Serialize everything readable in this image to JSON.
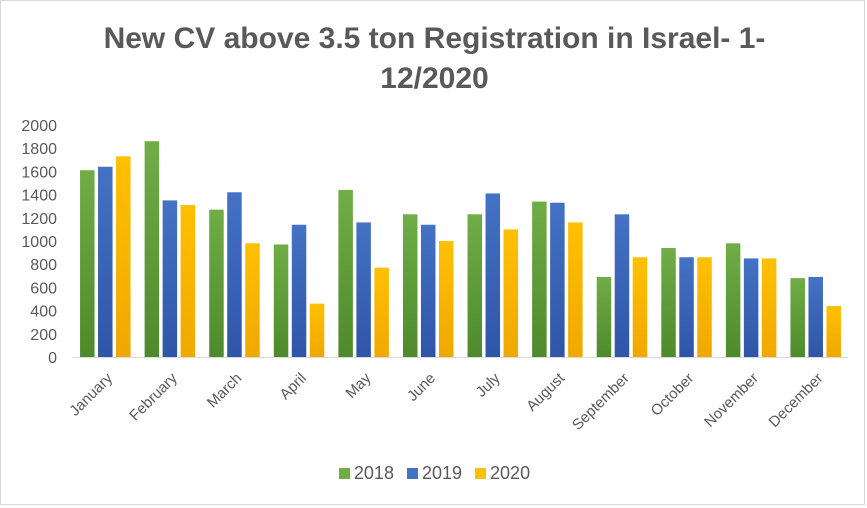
{
  "chart_data": {
    "type": "bar",
    "title_lines": [
      "New CV above 3.5 ton Registration in Israel- 1-",
      "12/2020"
    ],
    "categories": [
      "January",
      "February",
      "March",
      "April",
      "May",
      "June",
      "July",
      "August",
      "September",
      "October",
      "November",
      "December"
    ],
    "series": [
      {
        "name": "2018",
        "color": "#70ad47",
        "color_dark": "#4e8a2b",
        "values": [
          1610,
          1860,
          1270,
          970,
          1440,
          1230,
          1230,
          1340,
          690,
          940,
          980,
          680
        ]
      },
      {
        "name": "2019",
        "color": "#4472c4",
        "color_dark": "#2f55a8",
        "values": [
          1640,
          1350,
          1420,
          1140,
          1160,
          1140,
          1410,
          1330,
          1230,
          860,
          850,
          690
        ]
      },
      {
        "name": "2020",
        "color": "#ffc000",
        "color_dark": "#f0a800",
        "values": [
          1730,
          1310,
          980,
          460,
          770,
          1000,
          1100,
          1160,
          860,
          860,
          850,
          440
        ]
      }
    ],
    "ylim": [
      0,
      2000
    ],
    "yticks": [
      0,
      200,
      400,
      600,
      800,
      1000,
      1200,
      1400,
      1600,
      1800,
      2000
    ],
    "grid": false,
    "legend_position": "bottom"
  }
}
